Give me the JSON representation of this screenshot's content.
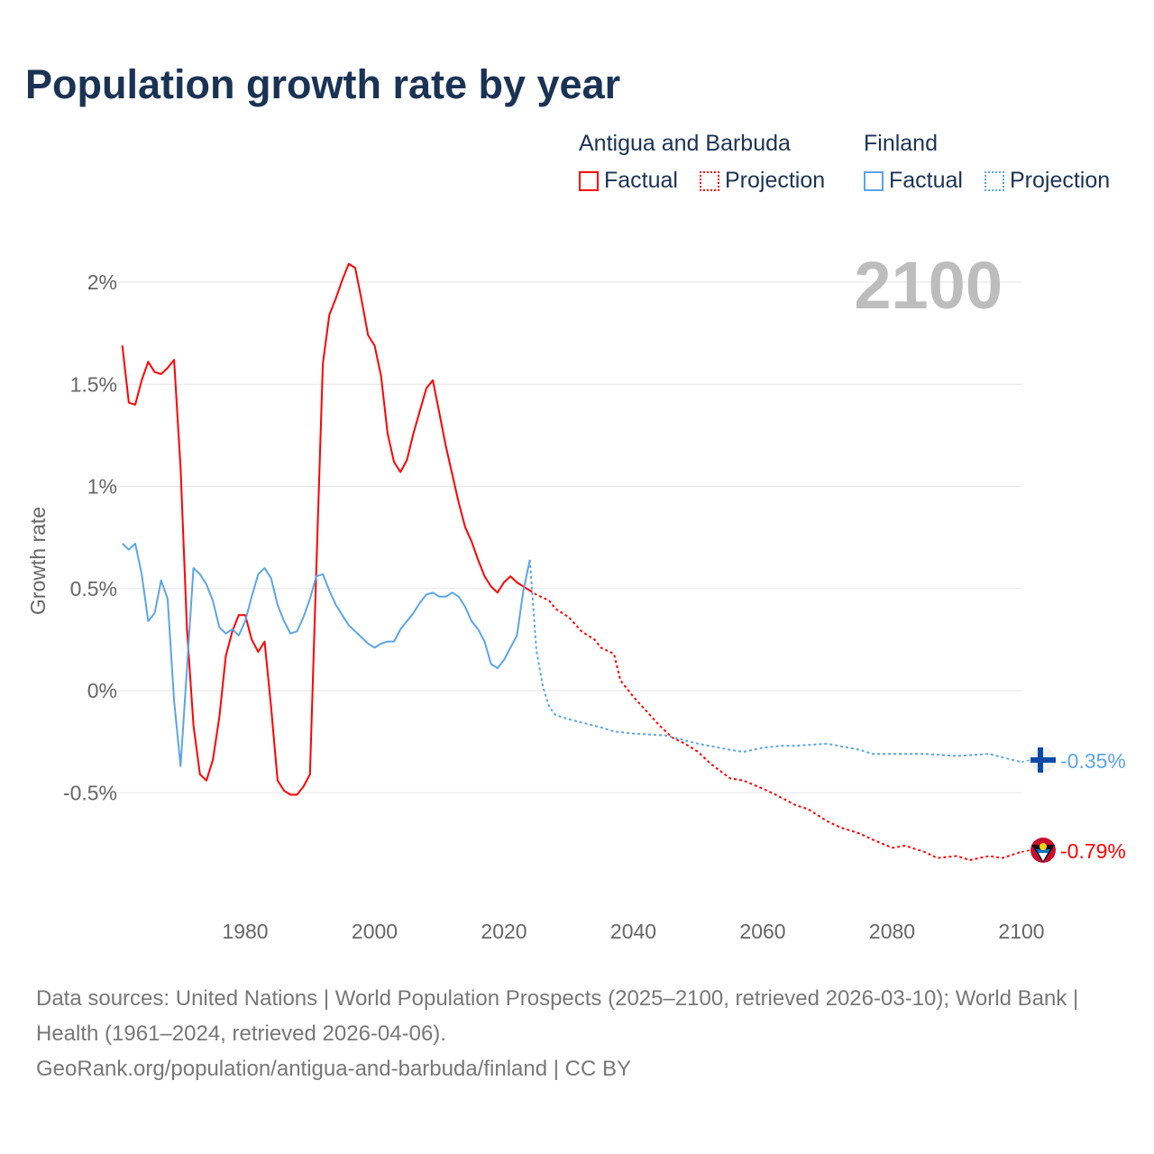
{
  "title": "Population growth rate by year",
  "legend": {
    "groups": [
      {
        "name": "Antigua and Barbuda",
        "factual": "Factual",
        "projection": "Projection",
        "color": "#ff0000"
      },
      {
        "name": "Finland",
        "factual": "Factual",
        "projection": "Projection",
        "color": "#5aa5e8"
      }
    ]
  },
  "year_display": "2100",
  "footer": {
    "sources": "Data sources: United Nations | World Population Prospects (2025–2100, retrieved 2026-03-10); World Bank | Health (1961–2024, retrieved 2026-04-06).",
    "link": "GeoRank.org/population/antigua-and-barbuda/finland | CC BY"
  },
  "chart_data": {
    "type": "line",
    "title": "Population growth rate by year",
    "xlabel": "",
    "ylabel": "Growth rate",
    "xlim": [
      1961,
      2100
    ],
    "ylim": [
      -0.95,
      2.15
    ],
    "x_ticks": [
      1980,
      2000,
      2020,
      2040,
      2060,
      2080,
      2100
    ],
    "y_ticks": [
      {
        "value": 2,
        "label": "2%"
      },
      {
        "value": 1.5,
        "label": "1.5%"
      },
      {
        "value": 1,
        "label": "1%"
      },
      {
        "value": 0.5,
        "label": "0.5%"
      },
      {
        "value": 0,
        "label": "0%"
      },
      {
        "value": -0.5,
        "label": "-0.5%"
      }
    ],
    "grid": true,
    "legend_position": "top-right",
    "series": [
      {
        "name": "Antigua and Barbuda",
        "color": "#ff0000",
        "end_label": "-0.79%",
        "flag": "antigua-flag",
        "factual": {
          "x_start": 1961,
          "values": [
            1.69,
            1.41,
            1.4,
            1.52,
            1.61,
            1.56,
            1.55,
            1.58,
            1.62,
            1.09,
            0.3,
            -0.17,
            -0.41,
            -0.44,
            -0.34,
            -0.13,
            0.17,
            0.29,
            0.37,
            0.37,
            0.25,
            0.19,
            0.24,
            -0.08,
            -0.44,
            -0.49,
            -0.51,
            -0.51,
            -0.47,
            -0.41,
            0.6,
            1.6,
            1.84,
            1.92,
            2.01,
            2.09,
            2.07,
            1.91,
            1.74,
            1.69,
            1.54,
            1.26,
            1.12,
            1.07,
            1.13,
            1.26,
            1.37,
            1.48,
            1.52,
            1.36,
            1.2,
            1.06,
            0.92,
            0.8,
            0.73,
            0.64,
            0.56,
            0.51,
            0.48,
            0.53,
            0.56,
            0.53,
            0.51,
            0.49
          ]
        },
        "projection": {
          "x": [
            2024,
            2025,
            2027,
            2028,
            2030,
            2032,
            2034,
            2035,
            2037,
            2038,
            2040,
            2042,
            2044,
            2046,
            2048,
            2050,
            2052,
            2055,
            2057,
            2060,
            2062,
            2065,
            2067,
            2070,
            2072,
            2075,
            2077,
            2080,
            2082,
            2085,
            2087,
            2090,
            2092,
            2095,
            2097,
            2100
          ],
          "values": [
            0.49,
            0.47,
            0.44,
            0.4,
            0.36,
            0.29,
            0.25,
            0.21,
            0.18,
            0.05,
            -0.03,
            -0.1,
            -0.17,
            -0.23,
            -0.26,
            -0.3,
            -0.36,
            -0.43,
            -0.44,
            -0.48,
            -0.51,
            -0.56,
            -0.58,
            -0.64,
            -0.67,
            -0.7,
            -0.73,
            -0.77,
            -0.76,
            -0.79,
            -0.82,
            -0.81,
            -0.83,
            -0.81,
            -0.82,
            -0.79
          ]
        }
      },
      {
        "name": "Finland",
        "color": "#5aa5e8",
        "end_label": "-0.35%",
        "flag": "finland-flag",
        "factual": {
          "x_start": 1961,
          "values": [
            0.72,
            0.69,
            0.72,
            0.57,
            0.34,
            0.38,
            0.54,
            0.45,
            -0.05,
            -0.37,
            0.11,
            0.6,
            0.57,
            0.52,
            0.44,
            0.31,
            0.28,
            0.3,
            0.27,
            0.34,
            0.46,
            0.57,
            0.6,
            0.55,
            0.42,
            0.34,
            0.28,
            0.29,
            0.36,
            0.45,
            0.56,
            0.57,
            0.49,
            0.42,
            0.37,
            0.32,
            0.29,
            0.26,
            0.23,
            0.21,
            0.23,
            0.24,
            0.24,
            0.3,
            0.34,
            0.38,
            0.43,
            0.47,
            0.48,
            0.46,
            0.46,
            0.48,
            0.46,
            0.41,
            0.34,
            0.3,
            0.24,
            0.13,
            0.11,
            0.15,
            0.21,
            0.27,
            0.49,
            0.64
          ]
        },
        "projection": {
          "x": [
            2024,
            2025,
            2026,
            2027,
            2028,
            2030,
            2035,
            2037,
            2040,
            2045,
            2050,
            2055,
            2057,
            2060,
            2063,
            2065,
            2070,
            2075,
            2077,
            2080,
            2085,
            2090,
            2095,
            2100
          ],
          "values": [
            0.64,
            0.2,
            0.02,
            -0.08,
            -0.12,
            -0.14,
            -0.18,
            -0.2,
            -0.21,
            -0.22,
            -0.26,
            -0.29,
            -0.3,
            -0.28,
            -0.27,
            -0.27,
            -0.26,
            -0.29,
            -0.31,
            -0.31,
            -0.31,
            -0.32,
            -0.31,
            -0.35
          ]
        }
      }
    ]
  }
}
